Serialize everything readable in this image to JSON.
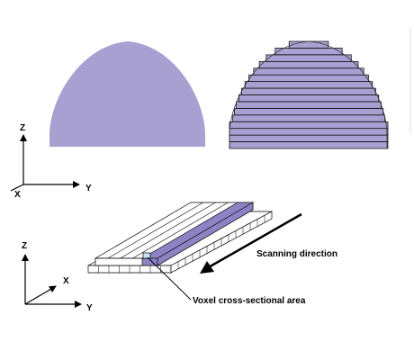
{
  "axes_top": {
    "z_label": "Z",
    "x_label": "X",
    "y_label": "Y"
  },
  "axes_bottom": {
    "z_label": "Z",
    "x_label": "X",
    "y_label": "Y"
  },
  "annotations": {
    "scanning_direction": "Scanning direction",
    "voxel_area": "Voxel cross-sectional area"
  },
  "colors": {
    "fill": "#a8a0d0",
    "highlight": "#8c82c4",
    "voxel": "#c8e4f4",
    "outline": "#000000"
  },
  "slice_count": 16
}
